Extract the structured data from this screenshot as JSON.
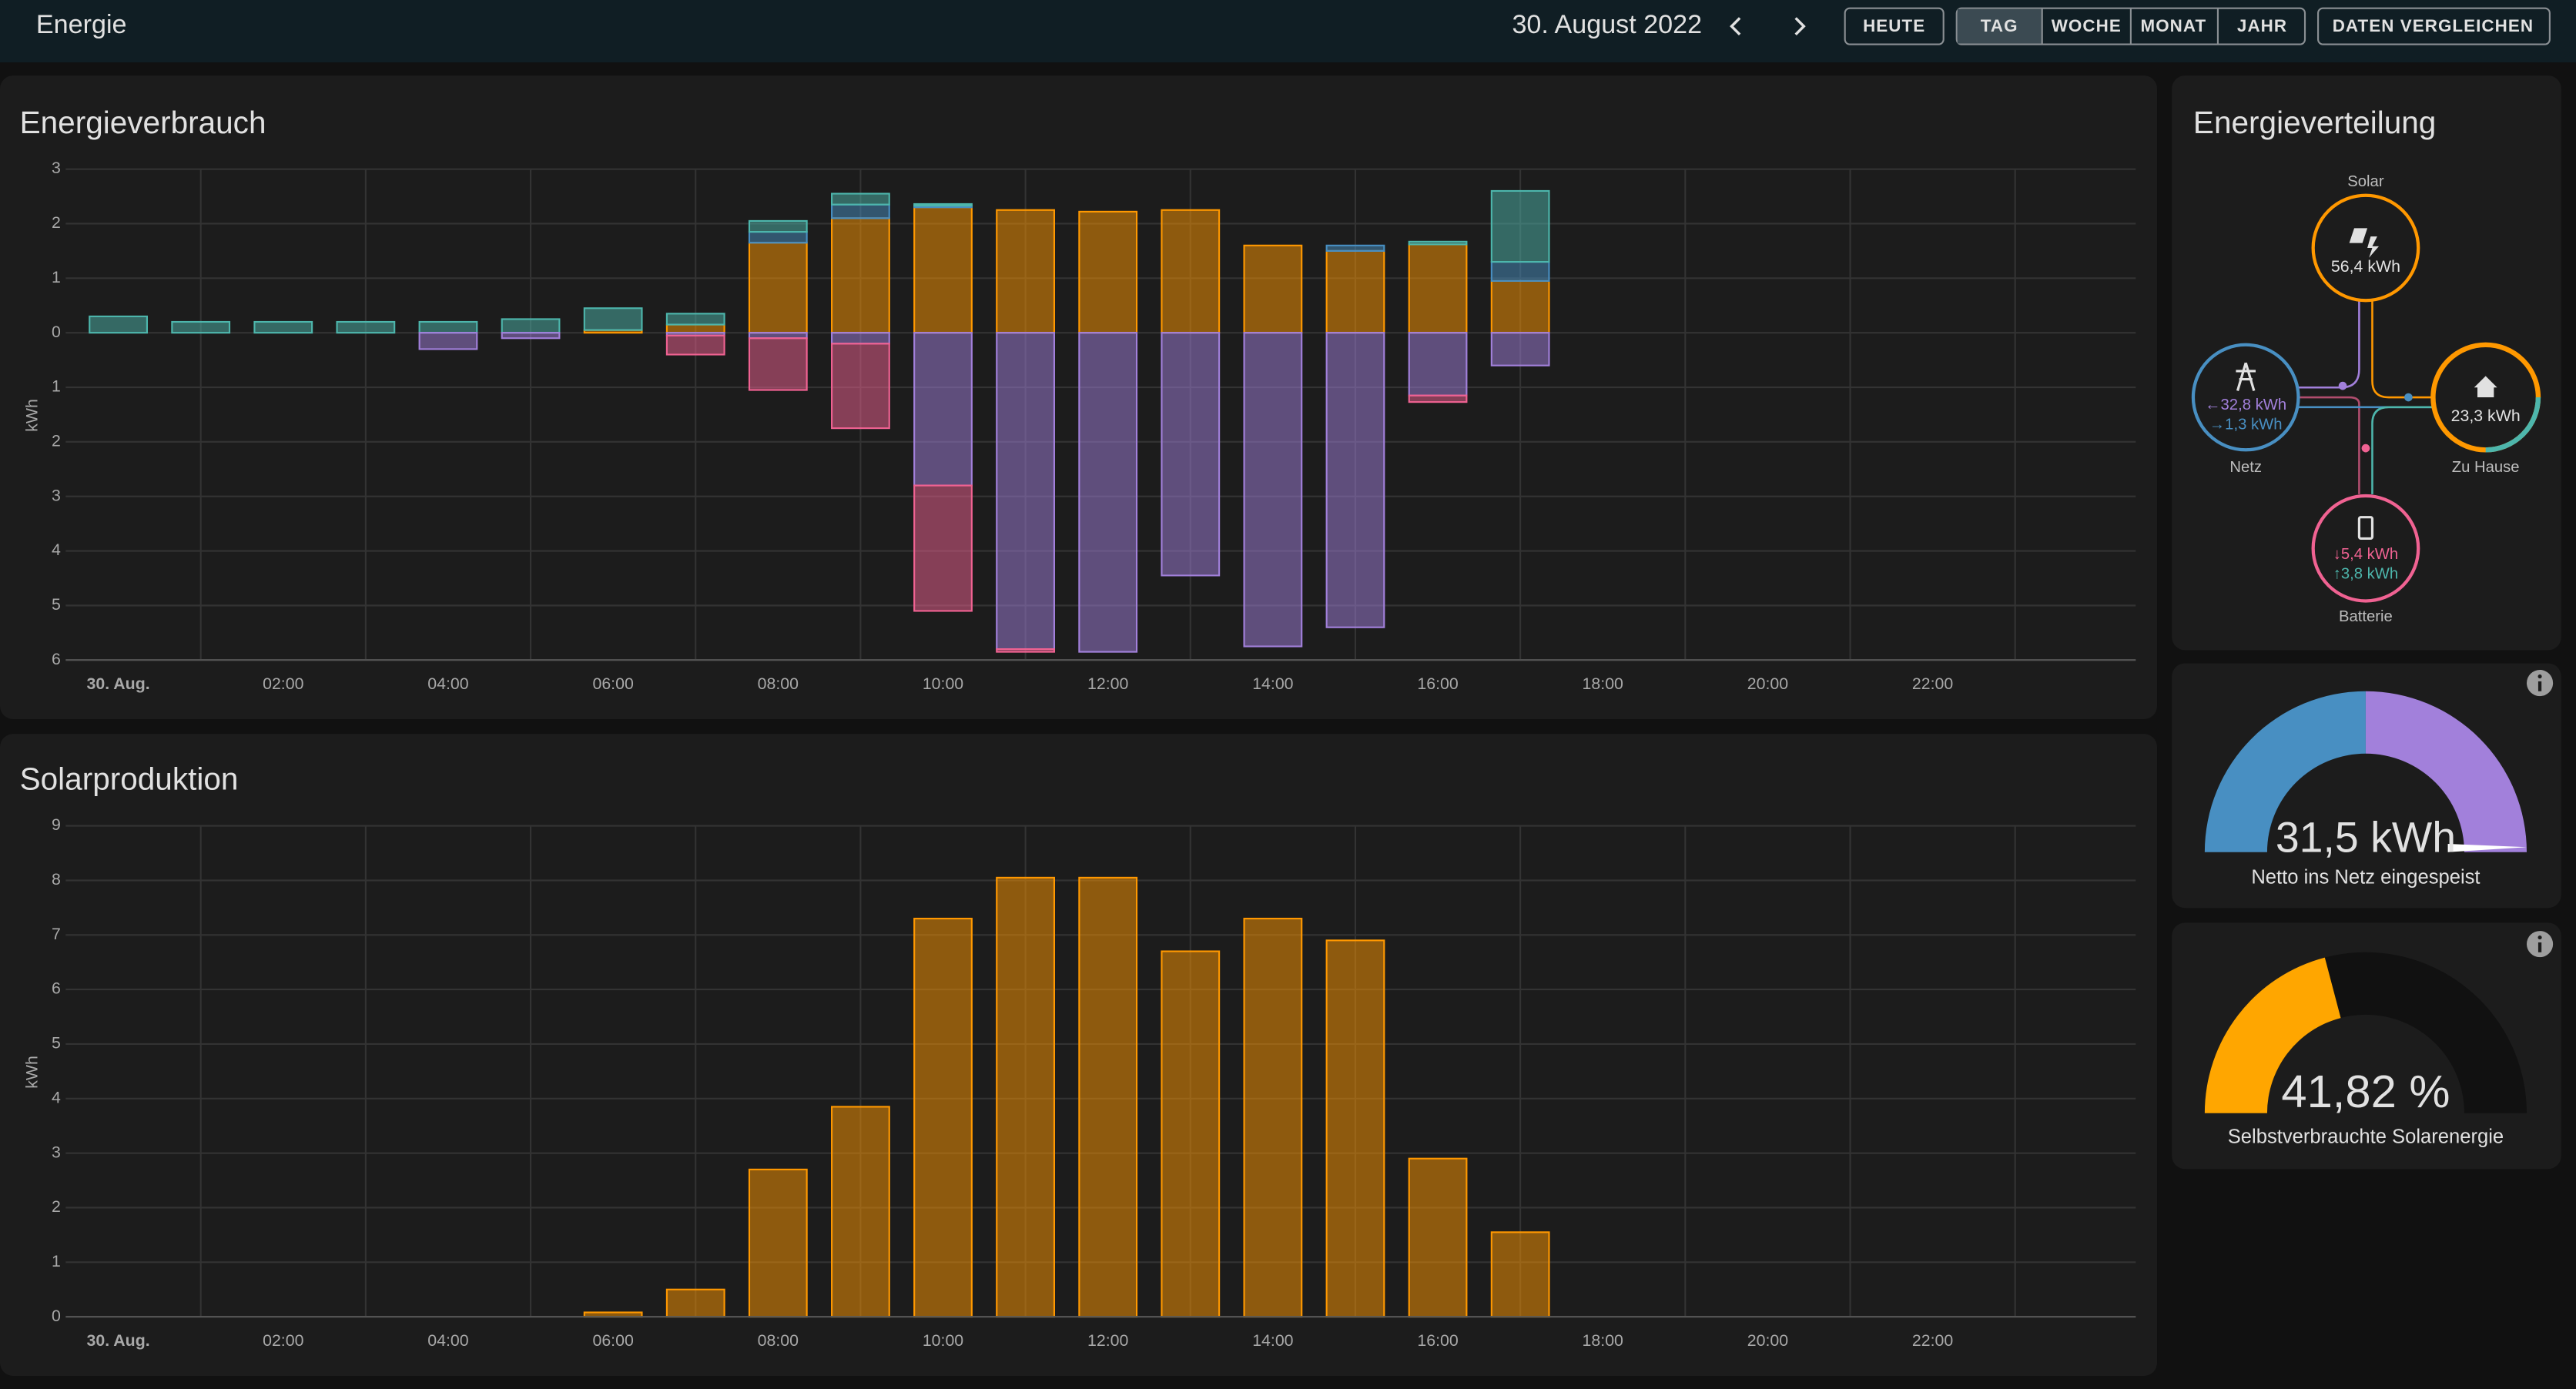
{
  "header": {
    "title": "Energie",
    "date": "30. August 2022",
    "buttons": [
      "HEUTE",
      "TAG",
      "WOCHE",
      "MONAT",
      "JAHR"
    ],
    "compare": "DATEN VERGLEICHEN"
  },
  "chart_data": [
    {
      "type": "bar",
      "stacked": true,
      "title": "Energieverbrauch",
      "y_label": "kWh",
      "categories": [
        "30. Aug.",
        null,
        "02:00",
        null,
        "04:00",
        null,
        "06:00",
        null,
        "08:00",
        null,
        "10:00",
        null,
        "12:00",
        null,
        "14:00",
        null,
        "16:00",
        null,
        "18:00",
        null,
        "20:00",
        null,
        "22:00",
        null
      ],
      "ylim": [
        -6,
        3
      ],
      "yticks": [
        {
          "value": -6,
          "label": "6"
        },
        {
          "value": -5,
          "label": "5"
        },
        {
          "value": -4,
          "label": "4"
        },
        {
          "value": -3,
          "label": "3"
        },
        {
          "value": -2,
          "label": "2"
        },
        {
          "value": -1,
          "label": "1"
        },
        0,
        1,
        2,
        3
      ],
      "grid": true,
      "series": [
        {
          "color": "#ff9800",
          "values": [
            0,
            0,
            0,
            0,
            0,
            0,
            0.05,
            0.15,
            1.65,
            2.1,
            2.3,
            2.25,
            2.22,
            2.25,
            1.6,
            1.5,
            1.62,
            0.95,
            null,
            null,
            null,
            null,
            null,
            null
          ]
        },
        {
          "color": "#488fc2",
          "values": [
            0,
            0,
            0,
            0,
            0,
            0,
            0,
            0,
            0.2,
            0.25,
            0.03,
            0,
            0,
            0,
            0,
            0.1,
            0,
            0.35,
            null,
            null,
            null,
            null,
            null,
            null
          ]
        },
        {
          "color": "#4db6ac",
          "values": [
            0.3,
            0.2,
            0.2,
            0.2,
            0.2,
            0.25,
            0.4,
            0.2,
            0.2,
            0.2,
            0.03,
            0,
            0,
            0,
            0,
            0,
            0.05,
            1.3,
            null,
            null,
            null,
            null,
            null,
            null
          ]
        },
        {
          "color": "#a280db",
          "values": [
            0,
            0,
            0,
            0,
            -0.3,
            -0.1,
            0,
            -0.05,
            -0.1,
            -0.2,
            -2.8,
            -5.8,
            -5.85,
            -4.45,
            -5.75,
            -5.4,
            -1.15,
            -0.6,
            null,
            null,
            null,
            null,
            null,
            null
          ]
        },
        {
          "color": "#f06292",
          "values": [
            0,
            0,
            0,
            0,
            0,
            0,
            0,
            -0.35,
            -0.95,
            -1.55,
            -2.3,
            -0.05,
            0,
            0,
            0,
            0,
            -0.12,
            0,
            null,
            null,
            null,
            null,
            null,
            null
          ]
        }
      ]
    },
    {
      "type": "bar",
      "title": "Solarproduktion",
      "y_label": "kWh",
      "categories": [
        "30. Aug.",
        null,
        "02:00",
        null,
        "04:00",
        null,
        "06:00",
        null,
        "08:00",
        null,
        "10:00",
        null,
        "12:00",
        null,
        "14:00",
        null,
        "16:00",
        null,
        "18:00",
        null,
        "20:00",
        null,
        "22:00",
        null
      ],
      "ylim": [
        0,
        9
      ],
      "yticks": [
        0,
        1,
        2,
        3,
        4,
        5,
        6,
        7,
        8,
        9
      ],
      "grid": true,
      "color": "#ff9800",
      "values": [
        null,
        null,
        null,
        null,
        null,
        null,
        0.08,
        0.5,
        2.7,
        3.85,
        7.3,
        8.05,
        8.05,
        6.7,
        7.3,
        6.9,
        2.9,
        1.55,
        null,
        null,
        null,
        null,
        null,
        null
      ]
    }
  ],
  "distribution": {
    "title": "Energieverteilung",
    "solar": {
      "label": "Solar",
      "value": "56,4 kWh"
    },
    "grid": {
      "label": "Netz",
      "out": "←32,8 kWh",
      "in": "→1,3 kWh"
    },
    "home": {
      "label": "Zu Hause",
      "value": "23,3 kWh"
    },
    "battery": {
      "label": "Batterie",
      "in": "↓5,4 kWh",
      "out": "↑3,8 kWh"
    }
  },
  "gauges": [
    {
      "value_label": "31,5 kWh",
      "label": "Netto ins Netz eingespeist"
    },
    {
      "value_label": "41,82 %",
      "label": "Selbstverbrauchte Solarenergie"
    }
  ]
}
